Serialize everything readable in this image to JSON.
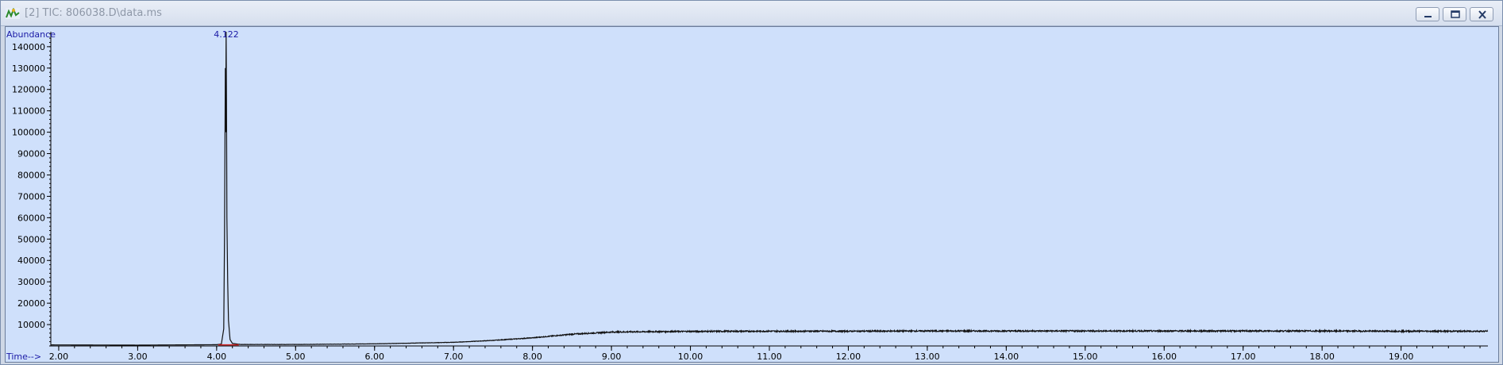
{
  "window": {
    "title": "[2] TIC: 806038.D\\data.ms",
    "buttons": {
      "minimize": "minimize",
      "restore": "restore",
      "close": "close"
    }
  },
  "colors": {
    "background": "#cfe0fb",
    "axis_text": "#1a1aa6",
    "trace": "#111111",
    "baseline_marker": "#d02020",
    "peak_label": "#1a1aa6"
  },
  "chart_data": {
    "type": "line",
    "ylabel": "Abundance",
    "xlabel": "Time-->",
    "xlim": [
      1.9,
      20.1
    ],
    "ylim": [
      0,
      147000
    ],
    "x_ticks": [
      2.0,
      3.0,
      4.0,
      5.0,
      6.0,
      7.0,
      8.0,
      9.0,
      10.0,
      11.0,
      12.0,
      13.0,
      14.0,
      15.0,
      16.0,
      17.0,
      18.0,
      19.0
    ],
    "x_tick_labels": [
      "2.00",
      "3.00",
      "4.00",
      "5.00",
      "6.00",
      "7.00",
      "8.00",
      "9.00",
      "10.00",
      "11.00",
      "12.00",
      "13.00",
      "14.00",
      "15.00",
      "16.00",
      "17.00",
      "18.00",
      "19.00"
    ],
    "y_ticks": [
      10000,
      20000,
      30000,
      40000,
      50000,
      60000,
      70000,
      80000,
      90000,
      100000,
      110000,
      120000,
      130000,
      140000
    ],
    "y_tick_labels": [
      "10000",
      "20000",
      "30000",
      "40000",
      "50000",
      "60000",
      "70000",
      "80000",
      "90000",
      "100000",
      "110000",
      "120000",
      "130000",
      "140000"
    ],
    "series": [
      {
        "x": [
          1.9,
          3.0,
          4.0,
          4.06,
          4.09,
          4.1,
          4.11,
          4.115,
          4.12,
          4.125,
          4.13,
          4.14,
          4.15,
          4.17,
          4.2,
          4.3,
          5.0,
          6.0,
          7.0,
          7.5,
          8.0,
          8.5,
          9.0,
          9.5,
          10.0,
          11.0,
          12.0,
          13.0,
          14.0,
          15.0,
          16.0,
          17.0,
          18.0,
          19.0,
          20.1
        ],
        "y": [
          500,
          400,
          600,
          900,
          8000,
          52000,
          130000,
          100000,
          147000,
          115000,
          60000,
          30000,
          12000,
          3000,
          1200,
          700,
          700,
          1000,
          1700,
          2600,
          3800,
          5500,
          6500,
          6700,
          6800,
          6900,
          6900,
          7000,
          7000,
          7000,
          7000,
          7000,
          7000,
          6900,
          6900
        ]
      }
    ],
    "annotations": [
      {
        "text": "4.122",
        "x": 4.122
      }
    ],
    "grid": false
  }
}
